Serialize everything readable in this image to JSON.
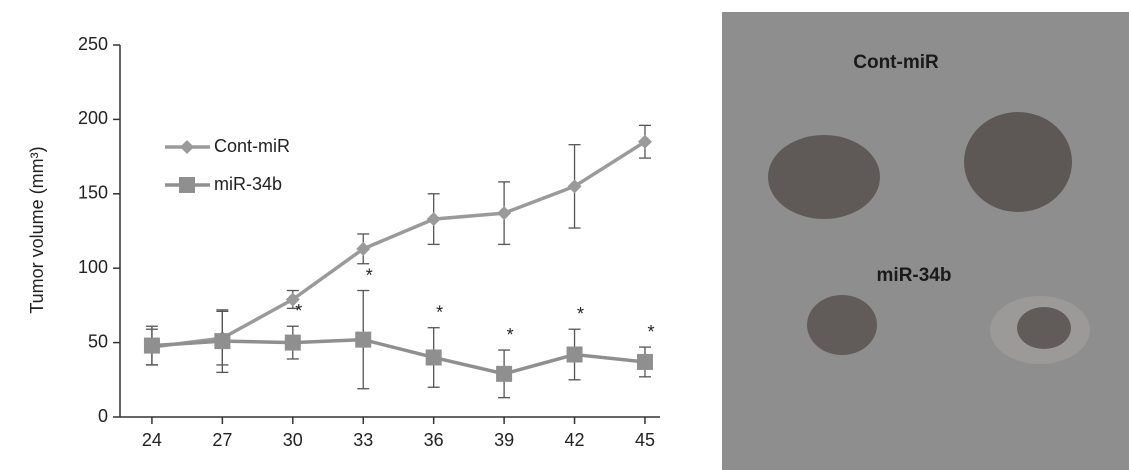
{
  "chart_data": {
    "type": "line",
    "y_label": "Tumor volume (mm³)",
    "x": [
      24,
      27,
      30,
      33,
      36,
      39,
      42,
      45
    ],
    "xlim": [
      22.64,
      45.64
    ],
    "xticks": [
      24,
      27,
      30,
      33,
      36,
      39,
      42,
      45
    ],
    "ylim": [
      0,
      250
    ],
    "yticks": [
      0,
      50,
      100,
      150,
      200,
      250
    ],
    "legend": "upper left",
    "series": [
      {
        "name": "Cont-miR",
        "color": "#9a9a9a",
        "marker": "diamond",
        "values": [
          47,
          53,
          79,
          113,
          133,
          137,
          155,
          185
        ],
        "errors": [
          12,
          18,
          6,
          10,
          17,
          21,
          28,
          11
        ]
      },
      {
        "name": "miR-34b",
        "color": "#8f8f8f",
        "marker": "square",
        "values": [
          48,
          51,
          50,
          52,
          40,
          29,
          42,
          37
        ],
        "errors": [
          13,
          21,
          11,
          33,
          20,
          16,
          17,
          10
        ],
        "value_labels": [
          null,
          null,
          "*",
          "*",
          "*",
          "*",
          "*",
          "*"
        ]
      }
    ]
  },
  "photo_labels": [
    "Cont-miR",
    "miR-34b"
  ]
}
